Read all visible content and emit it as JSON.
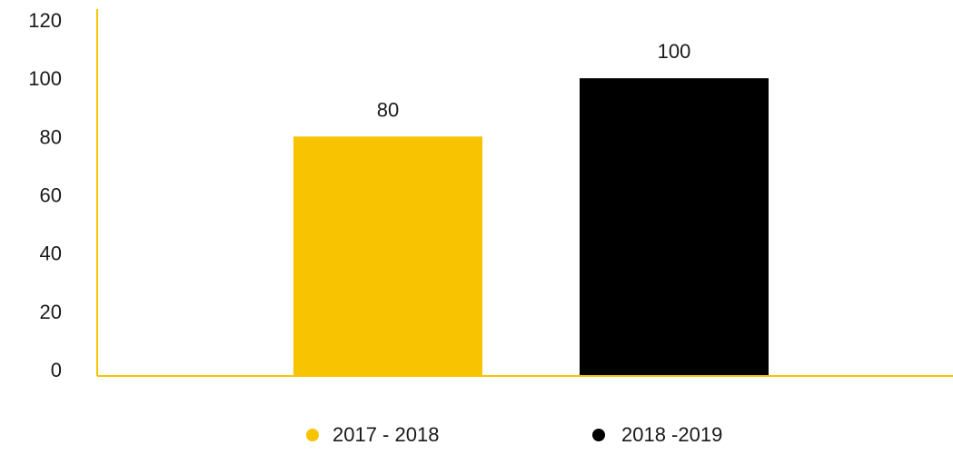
{
  "chart_data": {
    "type": "bar",
    "title": "",
    "xlabel": "",
    "ylabel": "",
    "ylim": [
      0,
      120
    ],
    "y_ticks": [
      "0",
      "20",
      "40",
      "60",
      "80",
      "100",
      "120"
    ],
    "grid": false,
    "legend_placement": "bottom",
    "series": [
      {
        "name": "2017 - 2018",
        "value": 80,
        "value_label": "80",
        "color": "#F8C300"
      },
      {
        "name": "2018 -2019",
        "value": 100,
        "value_label": "100",
        "color": "#000000"
      }
    ],
    "axis_color": "#F8C300"
  }
}
